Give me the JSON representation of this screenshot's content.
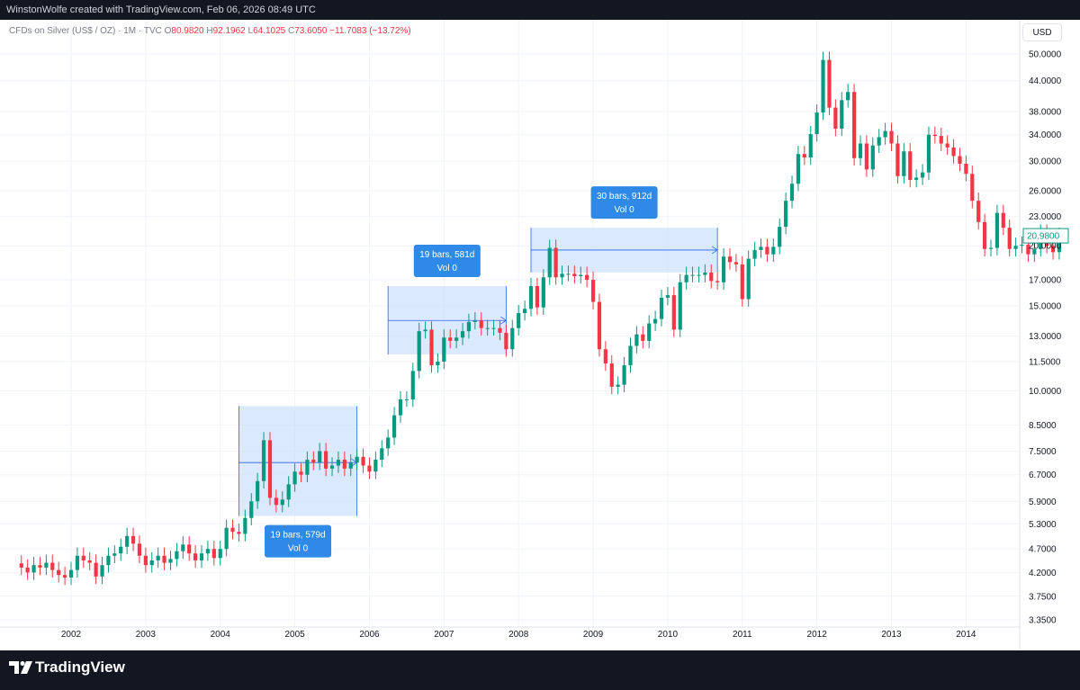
{
  "header": {
    "caption": "WinstonWolfe created with TradingView.com, Feb 06, 2026 08:49 UTC"
  },
  "legend": {
    "symbol": "CFDs on Silver (US$ / OZ) · 1M · TVC",
    "open_label": "O",
    "open": "80.9820",
    "high_label": "H",
    "high": "92.1962",
    "low_label": "L",
    "low": "64.1025",
    "close_label": "C",
    "close": "73.6050",
    "change": "−11.7083 (−13.72%)"
  },
  "currency_button": "USD",
  "footer": {
    "brand": "TradingView"
  },
  "colors": {
    "up": "#089981",
    "down": "#f23645",
    "range_fill": "#cfe2fb",
    "range_label": "#2e8ae6",
    "grid": "#f0f3fa"
  },
  "chart_data": {
    "type": "candlestick",
    "scale": "log",
    "y_ticks": [
      50,
      44,
      38,
      34,
      30,
      26,
      23,
      20,
      17,
      15,
      13,
      11.5,
      10,
      8.5,
      7.5,
      6.7,
      5.9,
      5.3,
      4.7,
      4.2,
      3.75,
      3.35
    ],
    "y_tick_labels": [
      "50.0000",
      "44.0000",
      "38.0000",
      "34.0000",
      "30.0000",
      "26.0000",
      "23.0000",
      "20.0000",
      "17.0000",
      "15.0000",
      "13.0000",
      "11.5000",
      "10.0000",
      "8.5000",
      "7.5000",
      "6.7000",
      "5.9000",
      "5.3000",
      "4.7000",
      "4.2000",
      "3.7500",
      "3.3500"
    ],
    "x_ticks": [
      "2002",
      "2003",
      "2004",
      "2005",
      "2006",
      "2007",
      "2008",
      "2009",
      "2010",
      "2011",
      "2012",
      "2013",
      "2014"
    ],
    "last_price": "20.9800",
    "ranges": [
      {
        "label1": "19 bars, 579d",
        "label2": "Vol 0",
        "start": "2004-04",
        "end": "2005-11",
        "high": 9.3,
        "low": 5.5,
        "pivot": 7.1,
        "label_position": "below"
      },
      {
        "label1": "19 bars, 581d",
        "label2": "Vol 0",
        "start": "2006-04",
        "end": "2007-11",
        "high": 16.5,
        "low": 11.9,
        "pivot": 14.0,
        "label_position": "above"
      },
      {
        "label1": "30 bars, 912d",
        "label2": "Vol 0",
        "start": "2008-03",
        "end": "2010-09",
        "high": 21.8,
        "low": 17.6,
        "pivot": 19.6,
        "label_position": "above"
      }
    ],
    "start": "2001-05",
    "closes": [
      4.3,
      4.2,
      4.35,
      4.3,
      4.4,
      4.25,
      4.15,
      4.1,
      4.25,
      4.55,
      4.45,
      4.4,
      4.12,
      4.35,
      4.55,
      4.6,
      4.75,
      5.0,
      4.82,
      4.55,
      4.35,
      4.45,
      4.55,
      4.4,
      4.48,
      4.65,
      4.8,
      4.6,
      4.45,
      4.6,
      4.7,
      4.5,
      4.7,
      5.2,
      5.1,
      5.05,
      5.45,
      5.9,
      6.5,
      7.9,
      6.0,
      5.8,
      5.95,
      6.4,
      6.8,
      6.7,
      7.2,
      7.1,
      7.5,
      6.9,
      7.0,
      7.2,
      6.9,
      7.1,
      7.3,
      7.0,
      6.8,
      7.2,
      7.6,
      8.0,
      8.9,
      9.6,
      9.6,
      11.0,
      13.3,
      13.4,
      11.3,
      11.5,
      12.9,
      12.7,
      12.9,
      13.3,
      13.9,
      14.0,
      13.5,
      13.5,
      13.5,
      13.2,
      12.2,
      13.5,
      14.5,
      14.8,
      16.5,
      14.9,
      17.2,
      19.8,
      17.2,
      17.5,
      17.5,
      17.3,
      17.4,
      17.0,
      15.3,
      12.2,
      11.4,
      10.2,
      10.3,
      11.3,
      12.4,
      13.1,
      12.7,
      13.8,
      14.1,
      15.6,
      15.8,
      13.4,
      16.8,
      17.4,
      17.4,
      17.4,
      17.6,
      16.9,
      16.8,
      19.0,
      18.5,
      18.3,
      15.5,
      18.8,
      19.6,
      19.9,
      19.2,
      19.9,
      21.9,
      24.8,
      26.9,
      31.0,
      30.5,
      34.1,
      37.8,
      48.6,
      38.7,
      35.0,
      40.1,
      41.7,
      30.4,
      32.6,
      28.8,
      32.3,
      33.6,
      34.6,
      32.6,
      27.9,
      31.4,
      27.4,
      27.7,
      28.4,
      34.0,
      33.8,
      32.6,
      32.0,
      30.7,
      29.6,
      28.2,
      24.8,
      22.4,
      19.7,
      19.8,
      23.4,
      21.8,
      19.7,
      20.0,
      20.1,
      19.2,
      19.7,
      21.3,
      20.0,
      19.4,
      20.98
    ]
  }
}
